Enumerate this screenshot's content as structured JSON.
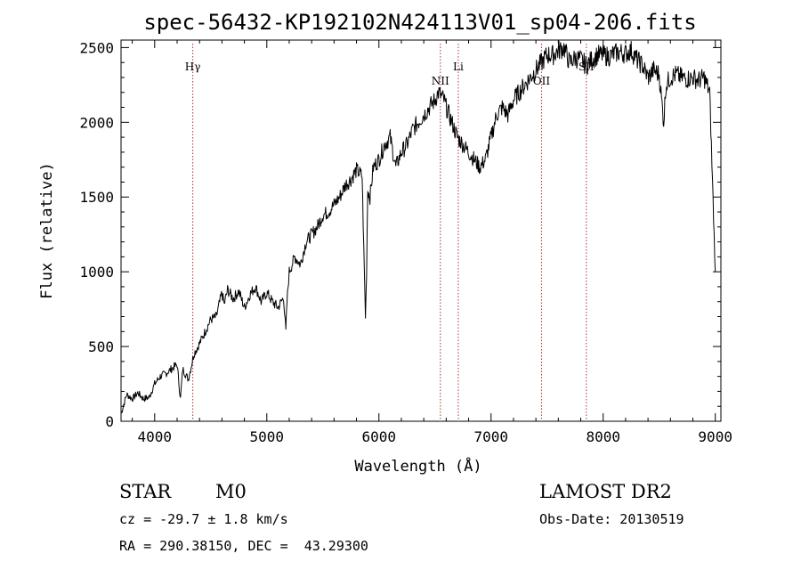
{
  "chart_data": {
    "type": "line",
    "title": "spec-56432-KP192102N424113V01_sp04-206.fits",
    "xlabel": "Wavelength (Å)",
    "ylabel": "Flux (relative)",
    "xlim": [
      3700,
      9050
    ],
    "ylim": [
      0,
      2550
    ],
    "xticks": [
      4000,
      5000,
      6000,
      7000,
      8000,
      9000
    ],
    "yticks": [
      0,
      500,
      1000,
      1500,
      2000,
      2500
    ],
    "grid": false,
    "line_color": "#000000",
    "marker_color": "#b03030",
    "lines": [
      {
        "name": "Hγ",
        "x": 4340
      },
      {
        "name": "NII",
        "x": 6548
      },
      {
        "name": "Li",
        "x": 6708
      },
      {
        "name": "OII",
        "x": 7450
      },
      {
        "name": "SII",
        "x": 7850
      }
    ],
    "series": [
      {
        "x": [
          3700,
          3750,
          3800,
          3850,
          3900,
          3950,
          4000,
          4050,
          4100,
          4150,
          4200,
          4230,
          4250,
          4300,
          4350,
          4400,
          4450,
          4500,
          4550,
          4600,
          4620,
          4650,
          4700,
          4750,
          4800,
          4850,
          4900,
          4950,
          5000,
          5050,
          5100,
          5150,
          5170,
          5180,
          5200,
          5250,
          5300,
          5350,
          5400,
          5450,
          5500,
          5550,
          5600,
          5650,
          5700,
          5750,
          5800,
          5850,
          5870,
          5880,
          5890,
          5900,
          5920,
          5950,
          6000,
          6050,
          6100,
          6150,
          6200,
          6250,
          6300,
          6350,
          6400,
          6450,
          6500,
          6530,
          6550,
          6580,
          6600,
          6650,
          6700,
          6750,
          6800,
          6850,
          6900,
          6950,
          7000,
          7050,
          7100,
          7150,
          7200,
          7250,
          7300,
          7350,
          7400,
          7450,
          7500,
          7550,
          7600,
          7650,
          7700,
          7750,
          7800,
          7850,
          7900,
          7950,
          8000,
          8050,
          8100,
          8150,
          8200,
          8250,
          8300,
          8350,
          8400,
          8450,
          8500,
          8540,
          8560,
          8600,
          8650,
          8700,
          8750,
          8800,
          8850,
          8900,
          8950,
          9000
        ],
        "y": [
          50,
          180,
          150,
          190,
          150,
          160,
          250,
          300,
          320,
          350,
          380,
          150,
          350,
          280,
          450,
          520,
          600,
          680,
          700,
          860,
          780,
          880,
          820,
          870,
          760,
          850,
          900,
          800,
          860,
          800,
          760,
          830,
          600,
          800,
          1000,
          1100,
          1050,
          1200,
          1250,
          1300,
          1380,
          1400,
          1450,
          1500,
          1580,
          1620,
          1680,
          1640,
          1000,
          700,
          1000,
          1550,
          1500,
          1700,
          1750,
          1850,
          1900,
          1700,
          1800,
          1850,
          1950,
          2000,
          2050,
          2100,
          2150,
          2200,
          2180,
          2150,
          2100,
          2000,
          1900,
          1850,
          1800,
          1750,
          1700,
          1750,
          1900,
          2050,
          2100,
          2050,
          2150,
          2200,
          2250,
          2300,
          2350,
          2400,
          2450,
          2450,
          2480,
          2500,
          2400,
          2430,
          2420,
          2380,
          2420,
          2450,
          2450,
          2440,
          2460,
          2470,
          2460,
          2480,
          2420,
          2380,
          2300,
          2350,
          2320,
          2000,
          2250,
          2300,
          2320,
          2300,
          2290,
          2300,
          2280,
          2300,
          2200,
          1000
        ]
      }
    ]
  },
  "info": {
    "object_class": "STAR",
    "subclass": "M0",
    "survey": "LAMOST DR2",
    "velocity": "cz = -29.7 ± 1.8 km/s",
    "obs_date": "Obs-Date: 20130519",
    "coords": "RA = 290.38150, DEC =  43.29300"
  }
}
